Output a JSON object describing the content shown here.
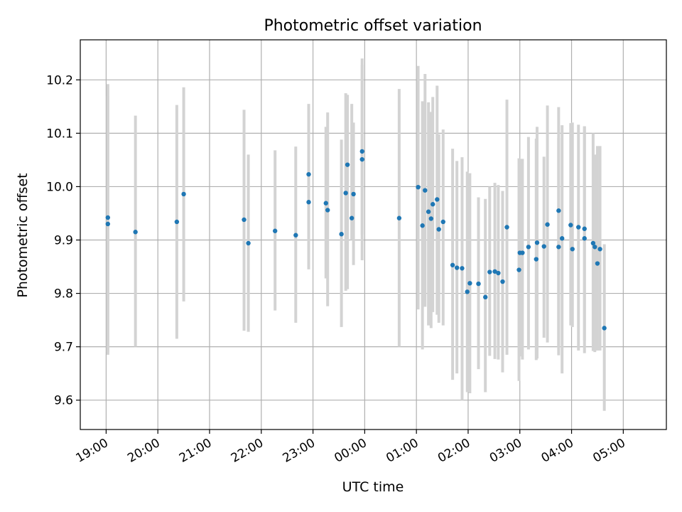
{
  "chart_data": {
    "type": "scatter",
    "title": "Photometric offset variation",
    "xlabel": "UTC time",
    "ylabel": "Photometric offset",
    "x_ticks": [
      "19:00",
      "20:00",
      "21:00",
      "22:00",
      "23:00",
      "00:00",
      "01:00",
      "02:00",
      "03:00",
      "04:00",
      "05:00"
    ],
    "x_tick_minutes": [
      0,
      60,
      120,
      180,
      240,
      300,
      360,
      420,
      480,
      540,
      600
    ],
    "y_ticks": [
      9.6,
      9.7,
      9.8,
      9.9,
      10.0,
      10.1,
      10.2
    ],
    "xlim_minutes": [
      -30,
      650
    ],
    "ylim": [
      9.545,
      10.275
    ],
    "grid": true,
    "point_color": "#1f77b4",
    "errorbar_color": "#d3d3d3",
    "series": [
      {
        "x_minutes": [
          2,
          2,
          34,
          82,
          90,
          160,
          165,
          196,
          220,
          235,
          235,
          255,
          257,
          273,
          278,
          280,
          285,
          287,
          297,
          297,
          340,
          362,
          367,
          370,
          374,
          377,
          379,
          384,
          386,
          391,
          402,
          407,
          413,
          419,
          422,
          432,
          440,
          445,
          451,
          455,
          460,
          465,
          479,
          480,
          483,
          490,
          499,
          500,
          508,
          512,
          525,
          525,
          529,
          539,
          541,
          548,
          555,
          555,
          565,
          567,
          570,
          573,
          578
        ],
        "y": [
          9.93,
          9.942,
          9.915,
          9.934,
          9.986,
          9.938,
          9.894,
          9.917,
          9.909,
          10.023,
          9.971,
          9.969,
          9.956,
          9.911,
          9.988,
          10.041,
          9.941,
          9.986,
          10.066,
          10.051,
          9.941,
          9.999,
          9.927,
          9.993,
          9.953,
          9.94,
          9.967,
          9.976,
          9.92,
          9.934,
          9.853,
          9.848,
          9.847,
          9.803,
          9.819,
          9.818,
          9.793,
          9.84,
          9.841,
          9.838,
          9.822,
          9.924,
          9.844,
          9.876,
          9.876,
          9.887,
          9.864,
          9.895,
          9.888,
          9.929,
          9.955,
          9.887,
          9.903,
          9.928,
          9.883,
          9.924,
          9.921,
          9.903,
          9.894,
          9.887,
          9.856,
          9.883,
          9.735
        ],
        "y_low": [
          9.69,
          9.685,
          9.7,
          9.715,
          9.785,
          9.73,
          9.728,
          9.768,
          9.745,
          9.845,
          9.89,
          9.828,
          9.776,
          9.737,
          9.805,
          9.808,
          9.9,
          9.853,
          9.91,
          9.862,
          9.7,
          9.77,
          9.695,
          9.775,
          9.74,
          9.735,
          9.765,
          9.76,
          9.745,
          9.74,
          9.638,
          9.65,
          9.6,
          9.615,
          9.613,
          9.658,
          9.615,
          9.683,
          9.677,
          9.676,
          9.652,
          9.685,
          9.636,
          9.682,
          9.676,
          9.695,
          9.675,
          9.678,
          9.717,
          9.708,
          9.7,
          9.684,
          9.65,
          9.74,
          9.737,
          9.693,
          9.688,
          9.712,
          9.692,
          9.69,
          9.693,
          9.693,
          9.58
        ],
        "y_high": [
          10.17,
          10.192,
          10.133,
          10.153,
          10.186,
          10.144,
          10.06,
          10.068,
          10.075,
          10.095,
          10.155,
          10.112,
          10.139,
          10.088,
          10.175,
          10.172,
          10.155,
          10.12,
          10.24,
          10.228,
          10.183,
          10.226,
          10.16,
          10.211,
          10.158,
          10.14,
          10.168,
          10.189,
          10.098,
          10.107,
          10.071,
          10.048,
          10.055,
          10.028,
          10.025,
          9.98,
          9.977,
          10.0,
          10.007,
          10.003,
          9.992,
          10.163,
          10.053,
          10.052,
          10.052,
          10.093,
          10.09,
          10.112,
          10.056,
          10.152,
          10.149,
          10.091,
          10.115,
          10.119,
          10.12,
          10.116,
          10.113,
          10.113,
          10.1,
          10.06,
          10.076,
          10.076,
          9.892
        ]
      }
    ]
  }
}
